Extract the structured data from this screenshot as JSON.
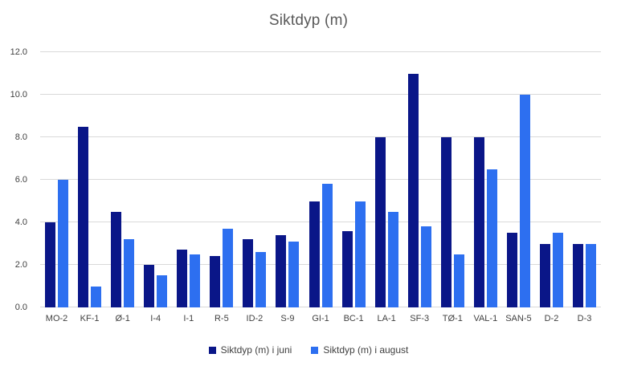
{
  "chart_data": {
    "type": "bar",
    "title": "Siktdyp (m)",
    "categories": [
      "MO-2",
      "KF-1",
      "Ø-1",
      "I-4",
      "I-1",
      "R-5",
      "ID-2",
      "S-9",
      "GI-1",
      "BC-1",
      "LA-1",
      "SF-3",
      "TØ-1",
      "VAL-1",
      "SAN-5",
      "D-2",
      "D-3"
    ],
    "series": [
      {
        "name": "Siktdyp (m) i juni",
        "color": "#0A1688",
        "values": [
          4.0,
          8.5,
          4.5,
          2.0,
          2.7,
          2.4,
          3.2,
          3.4,
          5.0,
          3.6,
          8.0,
          11.0,
          8.0,
          8.0,
          3.5,
          3.0,
          3.0
        ]
      },
      {
        "name": "Siktdyp (m) i august",
        "color": "#2D6FF0",
        "values": [
          6.0,
          1.0,
          3.2,
          1.5,
          2.5,
          3.7,
          2.6,
          3.1,
          5.8,
          5.0,
          4.5,
          3.8,
          2.5,
          6.5,
          10.0,
          3.5,
          3.0
        ]
      }
    ],
    "xlabel": "",
    "ylabel": "",
    "ylim": [
      0,
      12
    ],
    "yticks": [
      0,
      2,
      4,
      6,
      8,
      10,
      12
    ],
    "ytick_labels": [
      "0.0",
      "2.0",
      "4.0",
      "6.0",
      "8.0",
      "10.0",
      "12.0"
    ],
    "grid": true,
    "legend_position": "bottom"
  },
  "colors": {
    "background": "#FFFFFF",
    "gridline": "#D9D9D9",
    "title_text": "#595959",
    "axis_text": "#404040"
  }
}
